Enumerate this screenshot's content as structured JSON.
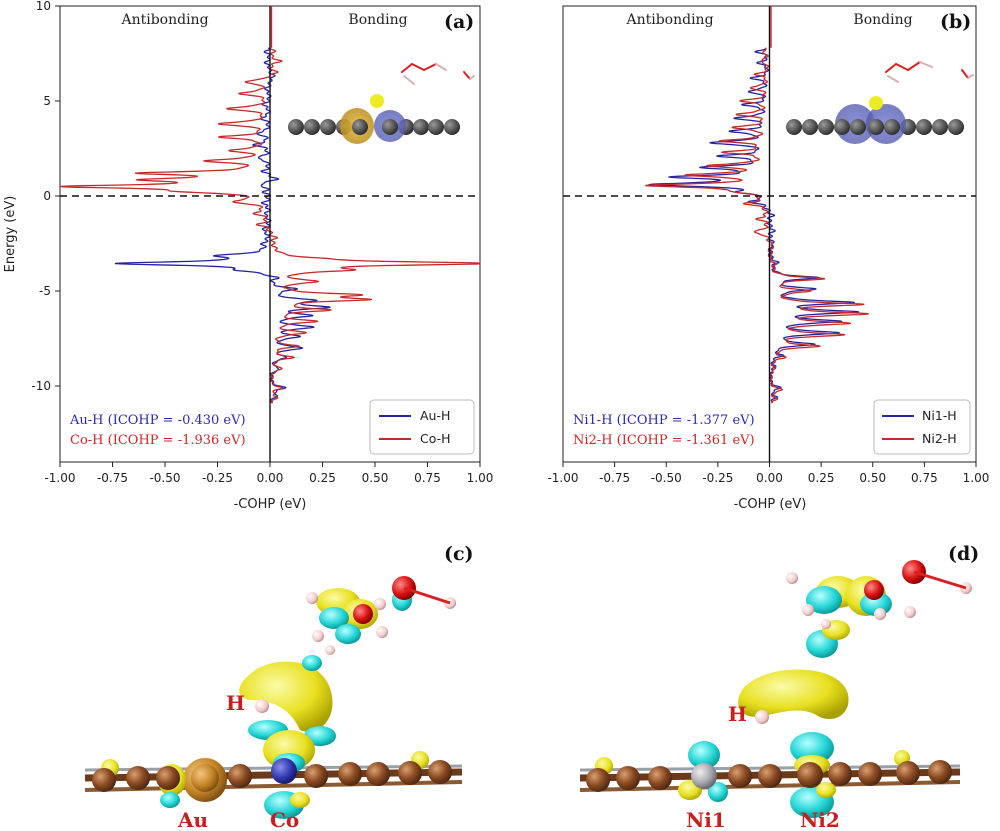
{
  "chart_data": [
    {
      "type": "line",
      "panel": "(a)",
      "regions": {
        "left": "Antibonding",
        "right": "Bonding"
      },
      "xlabel": "-COHP (eV)",
      "ylabel": "Energy (eV)",
      "xlim": [
        -1.0,
        1.0
      ],
      "ylim": [
        -14,
        10
      ],
      "xticks": [
        "-1.00",
        "-0.75",
        "-0.50",
        "-0.25",
        "0.00",
        "0.25",
        "0.50",
        "0.75",
        "1.00"
      ],
      "yticks": [
        "10",
        "5",
        "0",
        "-5",
        "-10"
      ],
      "fermi_level": 0,
      "legend_position": "lower-right",
      "annotations": [
        {
          "text": "Au-H (ICOHP = -0.430 eV)",
          "color": "#2b2bb0"
        },
        {
          "text": "Co-H (ICOHP = -1.936 eV)",
          "color": "#c82828"
        }
      ],
      "series": [
        {
          "name": "Au-H",
          "color": "#2323a8",
          "peaks": [
            [
              7.6,
              -0.02
            ],
            [
              7.0,
              -0.02
            ],
            [
              6.3,
              0.02
            ],
            [
              5.6,
              -0.02
            ],
            [
              4.8,
              -0.03
            ],
            [
              4.1,
              -0.04
            ],
            [
              3.3,
              -0.06
            ],
            [
              2.7,
              -0.07
            ],
            [
              2.0,
              -0.06
            ],
            [
              1.3,
              -0.03
            ],
            [
              0.9,
              0.04
            ],
            [
              0.6,
              -0.05
            ],
            [
              0.2,
              -0.02
            ],
            [
              -0.4,
              -0.03
            ],
            [
              -1.0,
              -0.02
            ],
            [
              -1.8,
              -0.03
            ],
            [
              -2.5,
              -0.02
            ],
            [
              -3.15,
              -0.22
            ],
            [
              -3.55,
              -0.72
            ],
            [
              -3.9,
              -0.1
            ],
            [
              -4.3,
              0.05
            ],
            [
              -4.9,
              0.12
            ],
            [
              -5.5,
              0.2
            ],
            [
              -5.85,
              0.26
            ],
            [
              -6.3,
              0.18
            ],
            [
              -6.9,
              0.2
            ],
            [
              -7.4,
              0.13
            ],
            [
              -8.0,
              0.15
            ],
            [
              -8.5,
              0.07
            ],
            [
              -9.1,
              0.04
            ],
            [
              -10.1,
              0.07
            ],
            [
              -10.5,
              0.03
            ]
          ]
        },
        {
          "name": "Co-H",
          "color": "#c82828",
          "peaks": [
            [
              7.6,
              0.02
            ],
            [
              7.1,
              0.05
            ],
            [
              6.5,
              0.04
            ],
            [
              6.0,
              -0.12
            ],
            [
              5.4,
              -0.14
            ],
            [
              4.6,
              -0.2
            ],
            [
              3.8,
              -0.24
            ],
            [
              3.1,
              -0.22
            ],
            [
              2.4,
              -0.17
            ],
            [
              1.85,
              -0.28
            ],
            [
              1.2,
              -0.55
            ],
            [
              0.85,
              -0.5
            ],
            [
              0.5,
              -0.9
            ],
            [
              0.25,
              -0.3
            ],
            [
              -0.3,
              -0.15
            ],
            [
              -0.9,
              -0.06
            ],
            [
              -1.5,
              -0.05
            ],
            [
              -2.2,
              0.02
            ],
            [
              -3.3,
              0.1
            ],
            [
              -3.55,
              1.0
            ],
            [
              -3.9,
              0.3
            ],
            [
              -4.5,
              0.2
            ],
            [
              -5.2,
              0.35
            ],
            [
              -5.45,
              0.4
            ],
            [
              -6.0,
              0.25
            ],
            [
              -6.6,
              0.2
            ],
            [
              -7.2,
              0.16
            ],
            [
              -7.9,
              0.12
            ],
            [
              -8.5,
              0.1
            ],
            [
              -9.1,
              0.05
            ],
            [
              -10.1,
              0.05
            ],
            [
              -10.6,
              0.03
            ]
          ]
        }
      ]
    },
    {
      "type": "line",
      "panel": "(b)",
      "regions": {
        "left": "Antibonding",
        "right": "Bonding"
      },
      "xlabel": "-COHP (eV)",
      "ylabel": "",
      "xlim": [
        -1.0,
        1.0
      ],
      "ylim": [
        -14,
        10
      ],
      "xticks": [
        "-1.00",
        "-0.75",
        "-0.50",
        "-0.25",
        "0.00",
        "0.25",
        "0.50",
        "0.75",
        "1.00"
      ],
      "yticks": [],
      "fermi_level": 0,
      "legend_position": "lower-right",
      "annotations": [
        {
          "text": "Ni1-H (ICOHP = -1.377 eV)",
          "color": "#2b2bb0"
        },
        {
          "text": "Ni2-H (ICOHP = -1.361 eV)",
          "color": "#c82828"
        }
      ],
      "series": [
        {
          "name": "Ni1-H",
          "color": "#2323a8",
          "peaks": [
            [
              7.6,
              -0.06
            ],
            [
              7.0,
              -0.05
            ],
            [
              6.2,
              -0.08
            ],
            [
              5.5,
              -0.1
            ],
            [
              4.8,
              -0.12
            ],
            [
              4.1,
              -0.16
            ],
            [
              3.4,
              -0.18
            ],
            [
              2.8,
              -0.28
            ],
            [
              2.1,
              -0.22
            ],
            [
              1.5,
              -0.3
            ],
            [
              1.0,
              -0.42
            ],
            [
              0.6,
              -0.55
            ],
            [
              0.2,
              -0.1
            ],
            [
              -0.3,
              -0.08
            ],
            [
              -1.0,
              0.02
            ],
            [
              -1.8,
              0.02
            ],
            [
              -2.5,
              0.02
            ],
            [
              -3.5,
              0.03
            ],
            [
              -4.3,
              0.22
            ],
            [
              -4.9,
              0.2
            ],
            [
              -5.6,
              0.38
            ],
            [
              -6.1,
              0.4
            ],
            [
              -6.6,
              0.32
            ],
            [
              -7.2,
              0.32
            ],
            [
              -7.8,
              0.2
            ],
            [
              -8.4,
              0.05
            ],
            [
              -9.0,
              0.02
            ],
            [
              -10.1,
              0.05
            ],
            [
              -10.6,
              0.03
            ]
          ]
        },
        {
          "name": "Ni2-H",
          "color": "#c82828",
          "peaks": [
            [
              7.6,
              -0.03
            ],
            [
              7.1,
              -0.04
            ],
            [
              6.4,
              -0.06
            ],
            [
              5.7,
              -0.09
            ],
            [
              5.0,
              -0.13
            ],
            [
              4.3,
              -0.15
            ],
            [
              3.6,
              -0.17
            ],
            [
              2.9,
              -0.22
            ],
            [
              2.3,
              -0.2
            ],
            [
              1.6,
              -0.28
            ],
            [
              1.1,
              -0.38
            ],
            [
              0.55,
              -0.58
            ],
            [
              0.25,
              -0.12
            ],
            [
              -0.4,
              -0.1
            ],
            [
              -1.2,
              -0.05
            ],
            [
              -1.9,
              -0.08
            ],
            [
              -2.6,
              0.02
            ],
            [
              -3.6,
              0.02
            ],
            [
              -4.35,
              0.25
            ],
            [
              -5.0,
              0.18
            ],
            [
              -5.7,
              0.42
            ],
            [
              -6.2,
              0.44
            ],
            [
              -6.7,
              0.36
            ],
            [
              -7.3,
              0.34
            ],
            [
              -7.9,
              0.22
            ],
            [
              -8.5,
              0.06
            ],
            [
              -9.1,
              0.02
            ],
            [
              -10.2,
              0.06
            ],
            [
              -10.7,
              0.03
            ]
          ]
        }
      ]
    }
  ],
  "panel_c": {
    "tag": "(c)",
    "labels": {
      "h": "H",
      "metal1": "Au",
      "metal2": "Co"
    }
  },
  "panel_d": {
    "tag": "(d)",
    "labels": {
      "h": "H",
      "metal1": "Ni1",
      "metal2": "Ni2"
    }
  }
}
